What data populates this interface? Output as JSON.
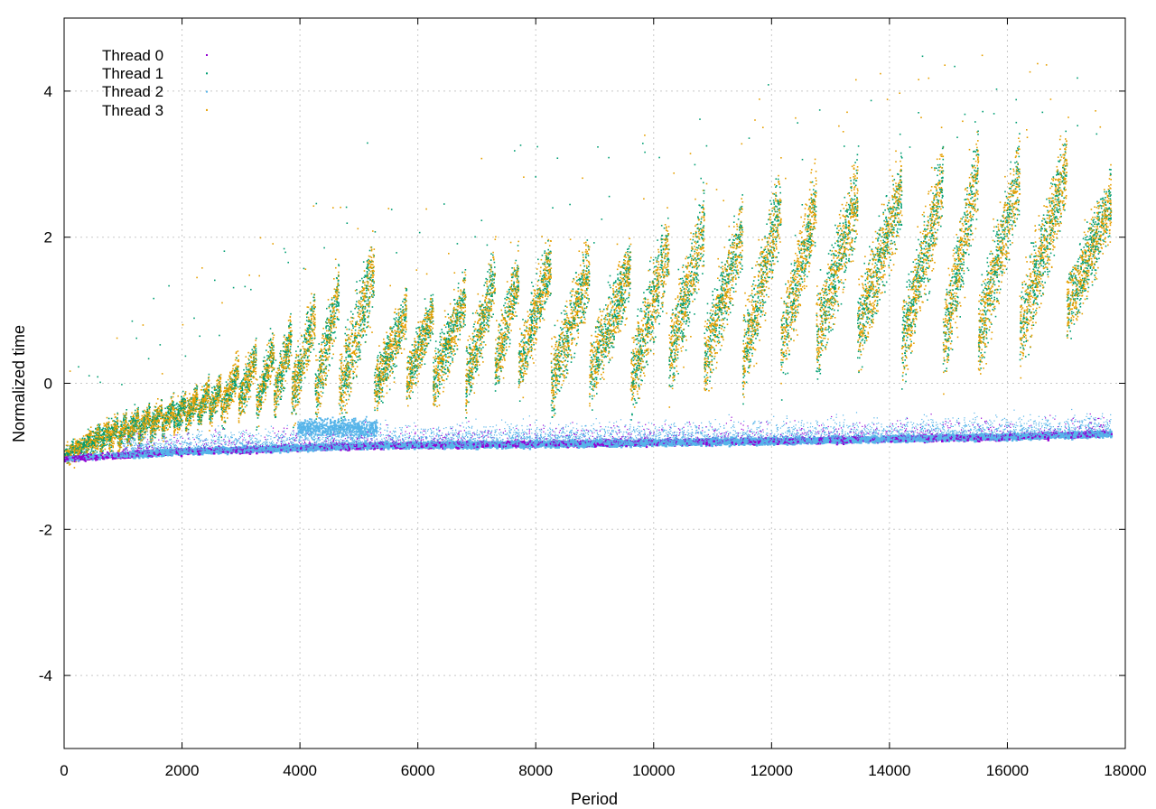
{
  "chart_data": {
    "type": "scatter",
    "title": "",
    "xlabel": "Period",
    "ylabel": "Normalized time",
    "xlim": [
      0,
      18000
    ],
    "ylim": [
      -5,
      5
    ],
    "xticks": [
      0,
      2000,
      4000,
      6000,
      8000,
      10000,
      12000,
      14000,
      16000,
      18000
    ],
    "yticks": [
      -4,
      -2,
      0,
      2,
      4
    ],
    "grid": true,
    "legend_position": "top-left",
    "series": [
      {
        "name": "Thread 0",
        "color": "#9400d3",
        "marker": "dot"
      },
      {
        "name": "Thread 1",
        "color": "#009e73",
        "marker": "dot"
      },
      {
        "name": "Thread 2",
        "color": "#56b4e9",
        "marker": "dot"
      },
      {
        "name": "Thread 3",
        "color": "#e69f00",
        "marker": "dot"
      }
    ],
    "cycles_upper_band": [
      {
        "start": 0,
        "end": 150,
        "y_start": -1.0,
        "y_end": -0.9
      },
      {
        "start": 150,
        "end": 300,
        "y_start": -0.95,
        "y_end": -0.85
      },
      {
        "start": 300,
        "end": 450,
        "y_start": -0.9,
        "y_end": -0.75
      },
      {
        "start": 450,
        "end": 600,
        "y_start": -0.85,
        "y_end": -0.65
      },
      {
        "start": 600,
        "end": 750,
        "y_start": -0.85,
        "y_end": -0.6
      },
      {
        "start": 750,
        "end": 900,
        "y_start": -0.8,
        "y_end": -0.55
      },
      {
        "start": 900,
        "end": 1050,
        "y_start": -0.8,
        "y_end": -0.5
      },
      {
        "start": 1050,
        "end": 1250,
        "y_start": -0.75,
        "y_end": -0.45
      },
      {
        "start": 1250,
        "end": 1450,
        "y_start": -0.7,
        "y_end": -0.4
      },
      {
        "start": 1450,
        "end": 1650,
        "y_start": -0.65,
        "y_end": -0.35
      },
      {
        "start": 1650,
        "end": 1850,
        "y_start": -0.6,
        "y_end": -0.3
      },
      {
        "start": 1850,
        "end": 2050,
        "y_start": -0.55,
        "y_end": -0.25
      },
      {
        "start": 2050,
        "end": 2250,
        "y_start": -0.5,
        "y_end": -0.15
      },
      {
        "start": 2250,
        "end": 2450,
        "y_start": -0.45,
        "y_end": -0.05
      },
      {
        "start": 2450,
        "end": 2650,
        "y_start": -0.4,
        "y_end": 0.0
      },
      {
        "start": 2650,
        "end": 2950,
        "y_start": -0.4,
        "y_end": 0.2
      },
      {
        "start": 2950,
        "end": 3250,
        "y_start": -0.3,
        "y_end": 0.4
      },
      {
        "start": 3250,
        "end": 3550,
        "y_start": -0.3,
        "y_end": 0.5
      },
      {
        "start": 3550,
        "end": 3850,
        "y_start": -0.2,
        "y_end": 0.7
      },
      {
        "start": 3850,
        "end": 4250,
        "y_start": -0.2,
        "y_end": 1.0
      },
      {
        "start": 4250,
        "end": 4650,
        "y_start": -0.2,
        "y_end": 1.3
      },
      {
        "start": 4650,
        "end": 5250,
        "y_start": -0.2,
        "y_end": 1.6
      },
      {
        "start": 5250,
        "end": 5800,
        "y_start": -0.1,
        "y_end": 1.0
      },
      {
        "start": 5800,
        "end": 6250,
        "y_start": 0.0,
        "y_end": 1.0
      },
      {
        "start": 6250,
        "end": 6800,
        "y_start": 0.0,
        "y_end": 1.2
      },
      {
        "start": 6800,
        "end": 7300,
        "y_start": 0.0,
        "y_end": 1.5
      },
      {
        "start": 7300,
        "end": 7700,
        "y_start": 0.2,
        "y_end": 1.5
      },
      {
        "start": 7700,
        "end": 8250,
        "y_start": 0.2,
        "y_end": 1.7
      },
      {
        "start": 8250,
        "end": 8900,
        "y_start": 0.0,
        "y_end": 1.6
      },
      {
        "start": 8900,
        "end": 9600,
        "y_start": 0.1,
        "y_end": 1.6
      },
      {
        "start": 9600,
        "end": 10250,
        "y_start": 0.0,
        "y_end": 1.9
      },
      {
        "start": 10250,
        "end": 10850,
        "y_start": 0.3,
        "y_end": 2.2
      },
      {
        "start": 10850,
        "end": 11500,
        "y_start": 0.3,
        "y_end": 2.1
      },
      {
        "start": 11500,
        "end": 12150,
        "y_start": 0.3,
        "y_end": 2.5
      },
      {
        "start": 12150,
        "end": 12750,
        "y_start": 0.5,
        "y_end": 2.5
      },
      {
        "start": 12750,
        "end": 13450,
        "y_start": 0.6,
        "y_end": 2.6
      },
      {
        "start": 13450,
        "end": 14200,
        "y_start": 0.7,
        "y_end": 2.7
      },
      {
        "start": 14200,
        "end": 14900,
        "y_start": 0.5,
        "y_end": 2.8
      },
      {
        "start": 14900,
        "end": 15500,
        "y_start": 0.5,
        "y_end": 3.0
      },
      {
        "start": 15500,
        "end": 16200,
        "y_start": 0.6,
        "y_end": 2.9
      },
      {
        "start": 16200,
        "end": 17000,
        "y_start": 0.7,
        "y_end": 3.0
      },
      {
        "start": 17000,
        "end": 17750,
        "y_start": 1.0,
        "y_end": 2.5
      }
    ],
    "lower_band": [
      {
        "x": 0,
        "y": -1.02
      },
      {
        "x": 1000,
        "y": -0.97
      },
      {
        "x": 2000,
        "y": -0.92
      },
      {
        "x": 3000,
        "y": -0.9
      },
      {
        "x": 4000,
        "y": -0.87
      },
      {
        "x": 5300,
        "y": -0.84
      },
      {
        "x": 8000,
        "y": -0.82
      },
      {
        "x": 10000,
        "y": -0.8
      },
      {
        "x": 12000,
        "y": -0.78
      },
      {
        "x": 14000,
        "y": -0.75
      },
      {
        "x": 16000,
        "y": -0.72
      },
      {
        "x": 17750,
        "y": -0.68
      }
    ],
    "lower_band_bump": {
      "start": 3950,
      "end": 5300,
      "y": -0.6
    }
  }
}
